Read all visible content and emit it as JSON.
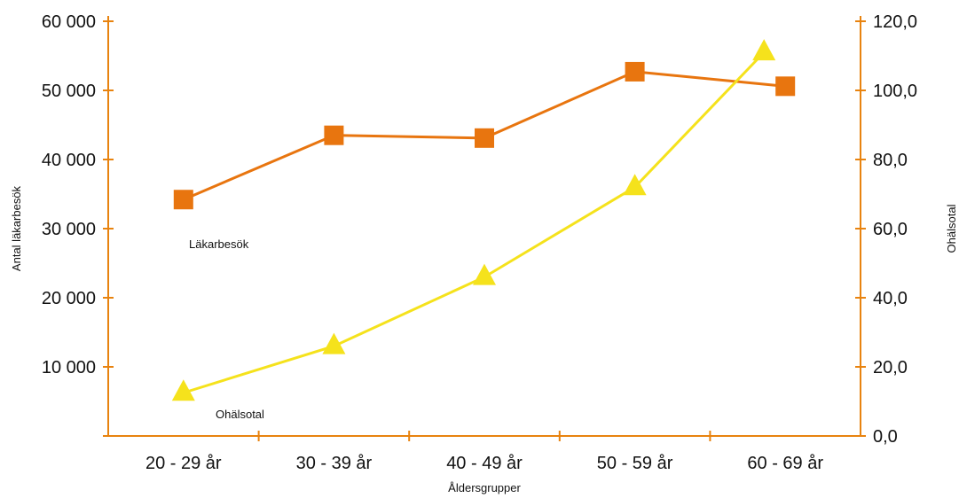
{
  "chart_data": {
    "type": "line",
    "categories": [
      "20 - 29 år",
      "30 - 39 år",
      "40 - 49 år",
      "50 - 59 år",
      "60 - 69 år"
    ],
    "xlabel": "Åldersgrupper",
    "ylabel_left": "Antal läkarbesök",
    "ylabel_right": "Ohälsotal",
    "ylim_left": [
      0,
      60000
    ],
    "ylim_right": [
      0,
      120
    ],
    "yticks_left": [
      "",
      "10 000",
      "20 000",
      "30 000",
      "40 000",
      "50 000",
      "60 000"
    ],
    "yticks_right": [
      "0,0",
      "20,0",
      "40,0",
      "60,0",
      "80,0",
      "100,0",
      "120,0"
    ],
    "grid": false,
    "series": [
      {
        "name": "Läkarbesök",
        "axis": "left",
        "marker": "square",
        "color": "#e8750f",
        "values": [
          34200,
          43500,
          43100,
          52700,
          50600
        ]
      },
      {
        "name": "Ohälsotal",
        "axis": "right",
        "marker": "triangle",
        "color": "#f5e21c",
        "values": [
          12.5,
          26,
          46,
          72,
          111
        ]
      }
    ],
    "axis_color": "#e8830f"
  }
}
